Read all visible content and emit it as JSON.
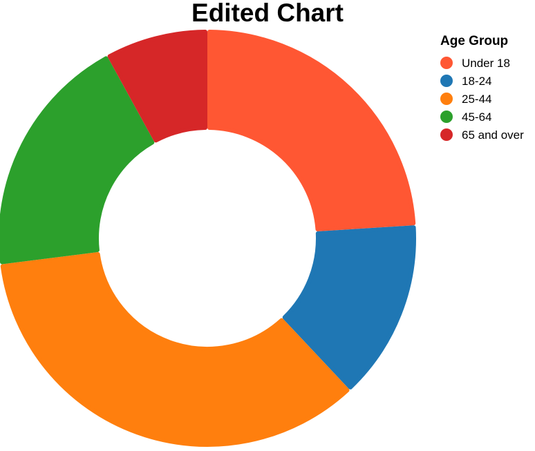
{
  "chart_data": {
    "type": "pie",
    "title": "Edited Chart",
    "legend_title": "Age Group",
    "legend_position": "top-right",
    "categories": [
      "Under 18",
      "18-24",
      "25-44",
      "45-64",
      "65 and over"
    ],
    "values": [
      24.0,
      14.0,
      35.0,
      19.0,
      8.0
    ],
    "colors": [
      "#FF5733",
      "#1F77B4",
      "#FF7F0E",
      "#2CA02C",
      "#D62728"
    ],
    "donut": true
  }
}
